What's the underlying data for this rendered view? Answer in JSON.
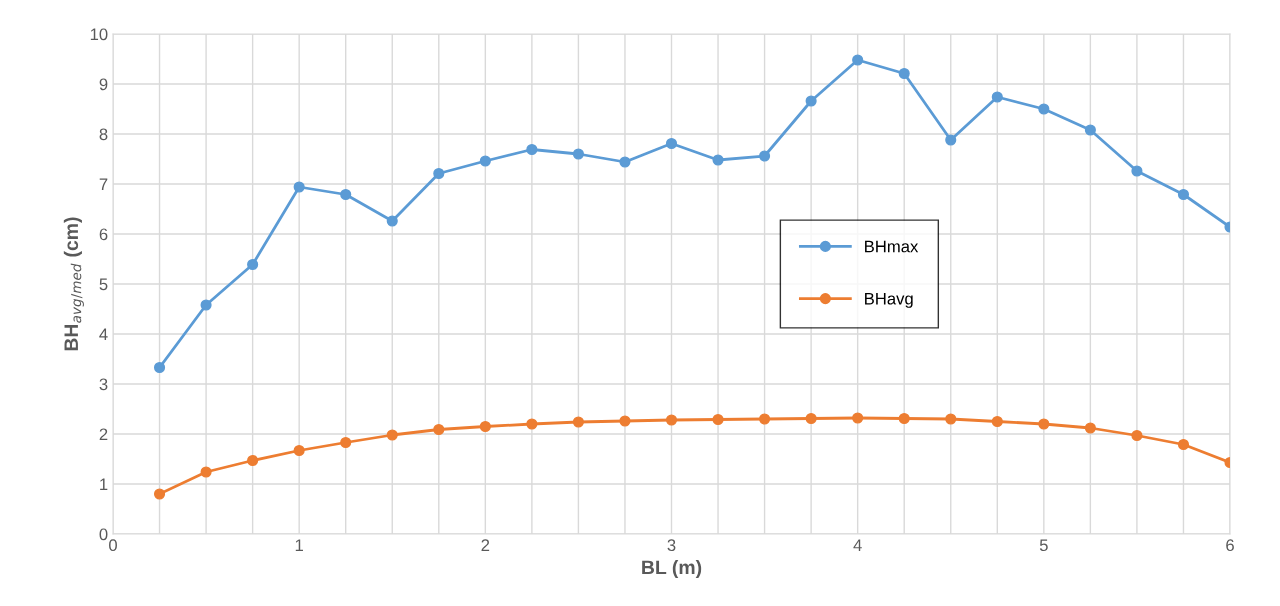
{
  "chart_data": {
    "type": "line",
    "xlabel": "BL (m)",
    "ylabel": "BH$_{avg/med}$ (cm)",
    "x": [
      0.25,
      0.5,
      0.75,
      1,
      1.25,
      1.5,
      1.75,
      2,
      2.25,
      2.5,
      2.75,
      3,
      3.25,
      3.5,
      3.75,
      4,
      4.25,
      4.5,
      4.75,
      5,
      5.25,
      5.5,
      5.75,
      6
    ],
    "series": [
      {
        "name": "BHmax",
        "color": "#5b9bd5",
        "values": [
          3.33,
          4.58,
          5.39,
          6.94,
          6.79,
          6.26,
          7.21,
          7.46,
          7.69,
          7.6,
          7.44,
          7.81,
          7.48,
          7.56,
          8.66,
          9.48,
          9.21,
          7.88,
          8.74,
          8.5,
          8.08,
          7.26,
          6.79,
          6.14
        ]
      },
      {
        "name": "BHavg",
        "color": "#ed7d31",
        "values": [
          0.8,
          1.24,
          1.47,
          1.67,
          1.83,
          1.98,
          2.09,
          2.15,
          2.2,
          2.24,
          2.26,
          2.28,
          2.29,
          2.3,
          2.31,
          2.32,
          2.31,
          2.3,
          2.25,
          2.2,
          2.12,
          1.97,
          1.79,
          1.43
        ]
      }
    ],
    "xlim": [
      0,
      6
    ],
    "ylim": [
      0,
      10
    ],
    "xticks": [
      0,
      {
        "value": 0.25,
        "label": null
      },
      {
        "value": 0.5,
        "label": null
      },
      {
        "value": 0.75,
        "label": null
      },
      1,
      {
        "value": 1.25,
        "label": null
      },
      {
        "value": 1.5,
        "label": null
      },
      {
        "value": 1.75,
        "label": null
      },
      2,
      {
        "value": 2.25,
        "label": null
      },
      {
        "value": 2.5,
        "label": null
      },
      {
        "value": 2.75,
        "label": null
      },
      3,
      {
        "value": 3.25,
        "label": null
      },
      {
        "value": 3.5,
        "label": null
      },
      {
        "value": 3.75,
        "label": null
      },
      4,
      {
        "value": 4.25,
        "label": null
      },
      {
        "value": 4.5,
        "label": null
      },
      {
        "value": 4.75,
        "label": null
      },
      5,
      {
        "value": 5.25,
        "label": null
      },
      {
        "value": 5.5,
        "label": null
      },
      {
        "value": 5.75,
        "label": null
      },
      6
    ],
    "yticks": [
      0,
      1,
      2,
      3,
      4,
      5,
      6,
      7,
      8,
      9,
      10
    ],
    "grid": true,
    "legend": "right",
    "marker": "circle",
    "line_style": "solid"
  }
}
